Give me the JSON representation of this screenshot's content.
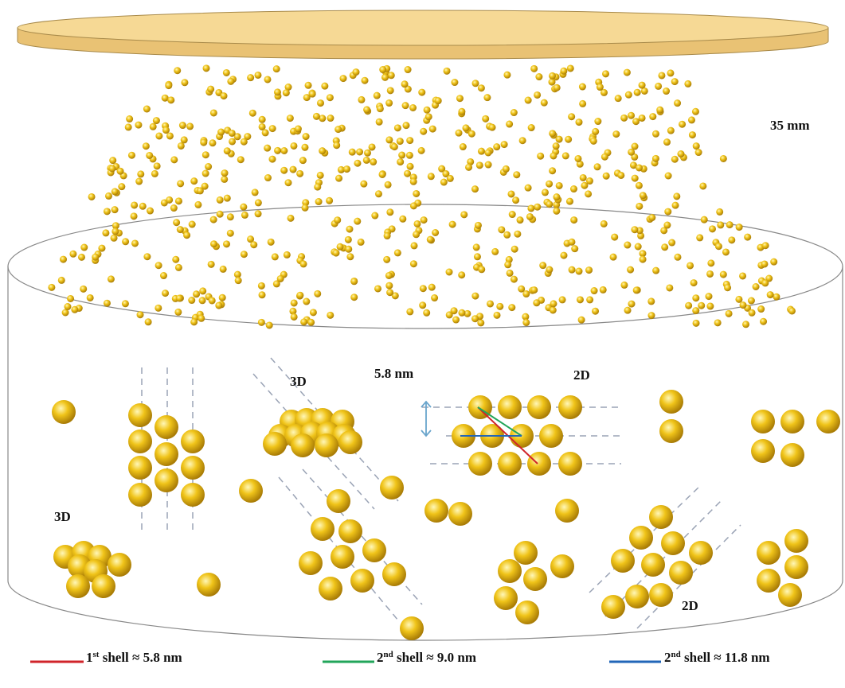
{
  "labels": {
    "distance": "35 mm",
    "left_top": "3D",
    "spacing": "5.8 nm",
    "center_top": "2D",
    "left_bottom": "3D",
    "right_bottom": "2D"
  },
  "legend": [
    {
      "ordinal": "1",
      "suffix": "st",
      "label": " shell ≈ 5.8 nm"
    },
    {
      "ordinal": "2",
      "suffix": "nd",
      "label": " shell ≈ 9.0 nm"
    },
    {
      "ordinal": "2",
      "suffix": "nd",
      "label": " shell ≈ 11.8 nm"
    }
  ]
}
